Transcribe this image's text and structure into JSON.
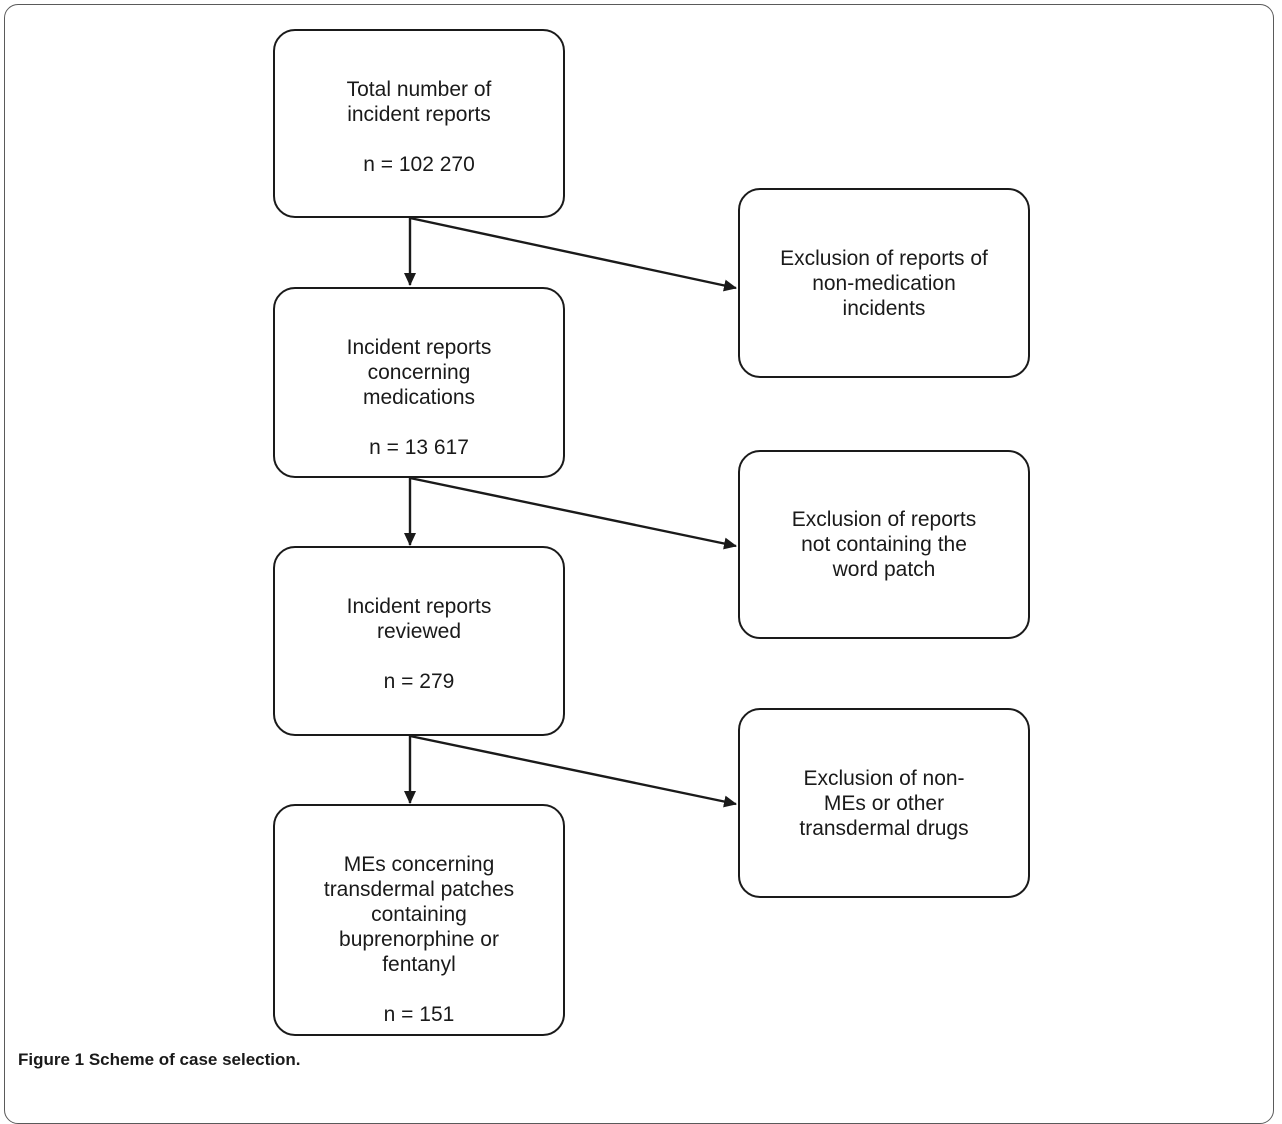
{
  "flowchart": {
    "main_steps": [
      {
        "label": "Total number of\nincident reports",
        "count": "n = 102 270"
      },
      {
        "label": "Incident reports\nconcerning\nmedications",
        "count": "n = 13 617"
      },
      {
        "label": "Incident reports\nreviewed",
        "count": "n = 279"
      },
      {
        "label": "MEs concerning\ntransdermal patches\ncontaining\nbuprenorphine or\nfentanyl",
        "count": "n = 151"
      }
    ],
    "exclusions": [
      {
        "label": "Exclusion of reports of\nnon-medication\nincidents"
      },
      {
        "label": "Exclusion of reports\nnot containing the\nword patch"
      },
      {
        "label": "Exclusion of non-\nMEs or other\ntransdermal drugs"
      }
    ]
  },
  "caption": {
    "lead": "Figure 1 Scheme of case selection."
  }
}
